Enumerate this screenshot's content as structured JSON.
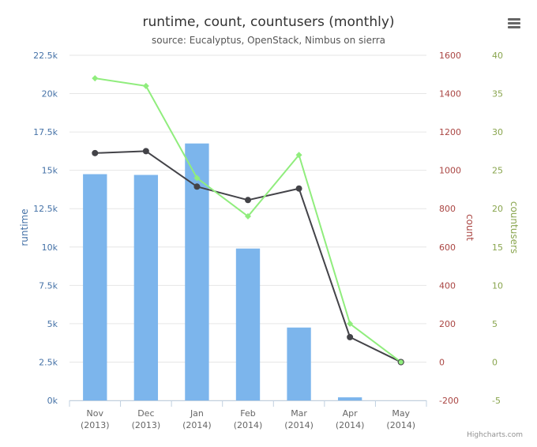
{
  "chart_data": {
    "type": "bar+line",
    "title": "runtime, count, countusers (monthly)",
    "subtitle": "source: Eucalyptus, OpenStack, Nimbus on sierra",
    "credits": "Highcharts.com",
    "categories": [
      [
        "Nov",
        "(2013)"
      ],
      [
        "Dec",
        "(2013)"
      ],
      [
        "Jan",
        "(2014)"
      ],
      [
        "Feb",
        "(2014)"
      ],
      [
        "Mar",
        "(2014)"
      ],
      [
        "Apr",
        "(2014)"
      ],
      [
        "May",
        "(2014)"
      ]
    ],
    "axes": {
      "runtime": {
        "label": "runtime",
        "range": [
          0,
          22500
        ],
        "ticks": [
          "0k",
          "2.5k",
          "5k",
          "7.5k",
          "10k",
          "12.5k",
          "15k",
          "17.5k",
          "20k",
          "22.5k"
        ],
        "color": "#4572a7"
      },
      "count": {
        "label": "count",
        "range": [
          -200,
          1600
        ],
        "ticks": [
          "-200",
          "0",
          "200",
          "400",
          "600",
          "800",
          "1000",
          "1200",
          "1400",
          "1600"
        ],
        "color": "#aa4643"
      },
      "countusers": {
        "label": "countusers",
        "range": [
          -5,
          40
        ],
        "ticks": [
          "-5",
          "0",
          "5",
          "10",
          "15",
          "20",
          "25",
          "30",
          "35",
          "40"
        ],
        "color": "#89a54e"
      }
    },
    "series": [
      {
        "name": "runtime",
        "type": "bar",
        "axis": "runtime",
        "color": "#7cb5ec",
        "values": [
          14750,
          14700,
          16750,
          9900,
          4750,
          200,
          0
        ]
      },
      {
        "name": "count",
        "type": "line",
        "axis": "count",
        "color": "#434348",
        "values": [
          1090,
          1100,
          915,
          845,
          905,
          130,
          0
        ]
      },
      {
        "name": "countusers",
        "type": "line",
        "axis": "countusers",
        "color": "#90ed7d",
        "values": [
          37,
          36,
          24,
          19,
          27,
          5,
          0
        ]
      }
    ],
    "grid": true,
    "legend": "none"
  }
}
